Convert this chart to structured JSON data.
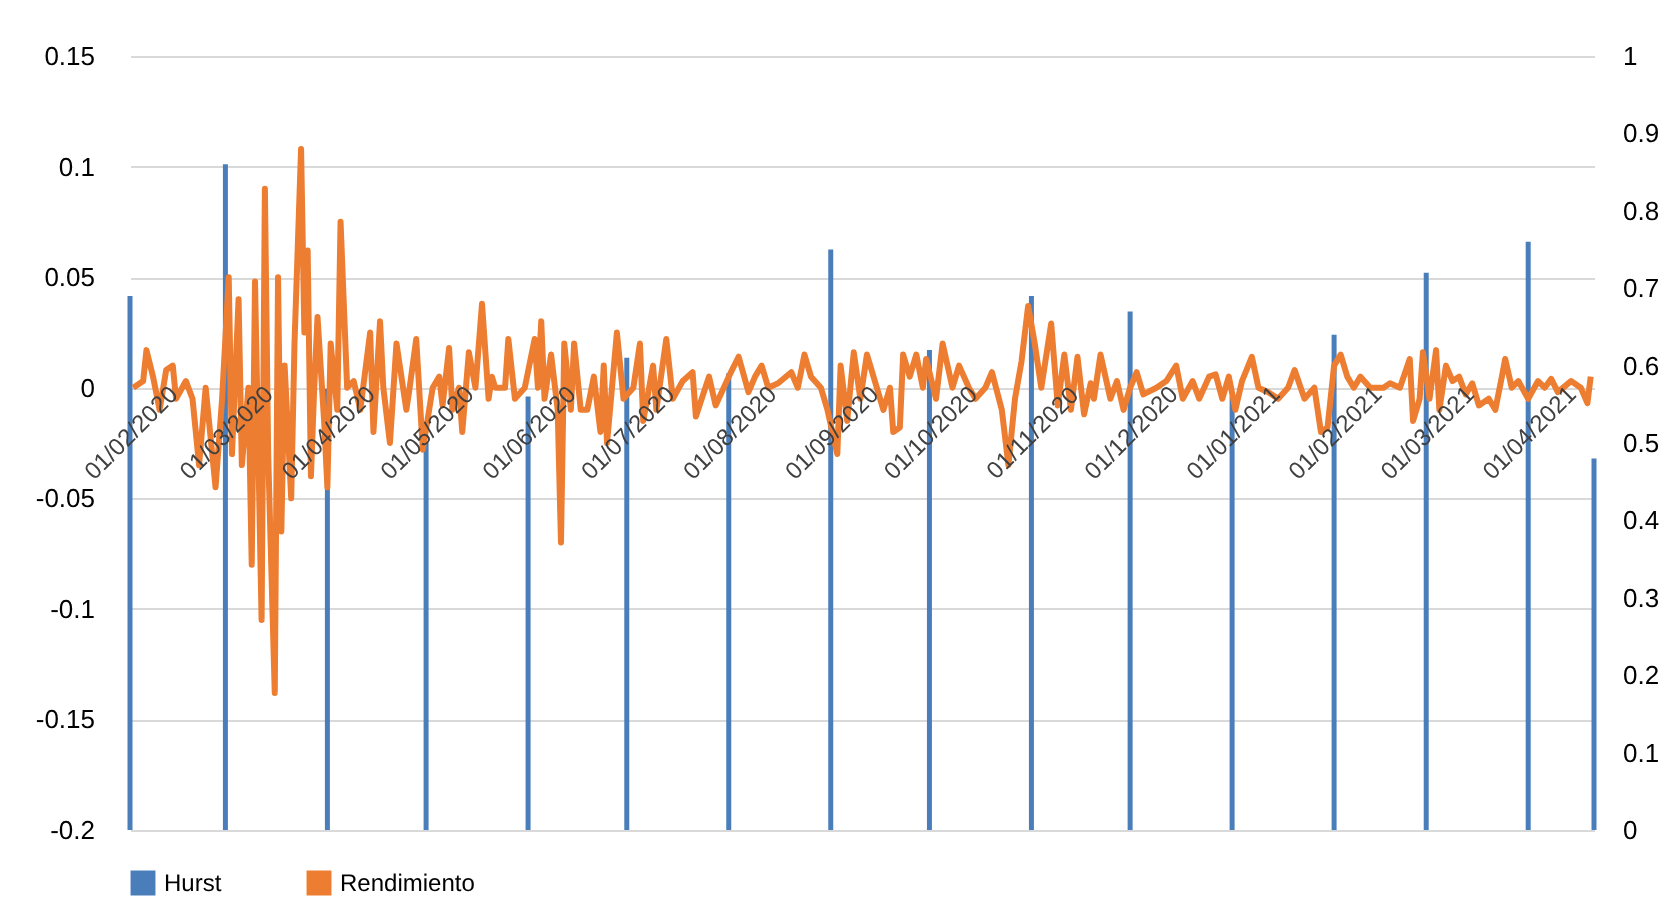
{
  "chart_data": {
    "type": "line",
    "legend": "bottom",
    "grid": "y",
    "xlim": [
      "2020-02-01",
      "2021-04-21"
    ],
    "xticks": [
      {
        "value": "2020-02-01",
        "label": "01/02/2020"
      },
      {
        "value": "2020-03-01",
        "label": "01/03/2020"
      },
      {
        "value": "2020-04-01",
        "label": "01/04/2020"
      },
      {
        "value": "2020-05-01",
        "label": "01/05/2020"
      },
      {
        "value": "2020-06-01",
        "label": "01/06/2020"
      },
      {
        "value": "2020-07-01",
        "label": "01/07/2020"
      },
      {
        "value": "2020-08-01",
        "label": "01/08/2020"
      },
      {
        "value": "2020-09-01",
        "label": "01/09/2020"
      },
      {
        "value": "2020-10-01",
        "label": "01/10/2020"
      },
      {
        "value": "2020-11-01",
        "label": "01/11/2020"
      },
      {
        "value": "2020-12-01",
        "label": "01/12/2020"
      },
      {
        "value": "2021-01-01",
        "label": "01/01/2021"
      },
      {
        "value": "2021-02-01",
        "label": "01/02/2021"
      },
      {
        "value": "2021-03-01",
        "label": "01/03/2021"
      },
      {
        "value": "2021-04-01",
        "label": "01/04/2021"
      }
    ],
    "ylim": [
      -0.2,
      0.15
    ],
    "yticks": [
      -0.2,
      -0.15,
      -0.1,
      -0.05,
      0,
      0.05,
      0.1,
      0.15
    ],
    "y2lim": [
      0,
      1
    ],
    "y2ticks": [
      0,
      0.1,
      0.2,
      0.3,
      0.4,
      0.5,
      0.6,
      0.7,
      0.8,
      0.9,
      1
    ],
    "series": [
      {
        "name": "Hurst",
        "type": "bar",
        "axis": "y2",
        "color": "#4a7ebb",
        "x": [
          "2020-02-01",
          "2020-03-01",
          "2020-04-01",
          "2020-05-01",
          "2020-06-01",
          "2020-07-01",
          "2020-08-01",
          "2020-09-01",
          "2020-10-01",
          "2020-11-01",
          "2020-12-01",
          "2021-01-01",
          "2021-02-01",
          "2021-03-01",
          "2021-04-01",
          "2021-04-21"
        ],
        "values": [
          0.69,
          0.86,
          0.57,
          0.5,
          0.56,
          0.61,
          0.59,
          0.75,
          0.62,
          0.69,
          0.67,
          0.56,
          0.64,
          0.72,
          0.76,
          0.48
        ]
      },
      {
        "name": "Rendimiento",
        "color": "#ed7d31",
        "x": [
          "2020-02-02",
          "2020-02-05",
          "2020-02-06",
          "2020-02-08",
          "2020-02-10",
          "2020-02-12",
          "2020-02-14",
          "2020-02-15",
          "2020-02-18",
          "2020-02-20",
          "2020-02-22",
          "2020-02-24",
          "2020-02-26",
          "2020-02-27",
          "2020-02-29",
          "2020-03-02",
          "2020-03-03",
          "2020-03-05",
          "2020-03-06",
          "2020-03-08",
          "2020-03-09",
          "2020-03-10",
          "2020-03-12",
          "2020-03-13",
          "2020-03-14",
          "2020-03-16",
          "2020-03-17",
          "2020-03-18",
          "2020-03-19",
          "2020-03-21",
          "2020-03-22",
          "2020-03-24",
          "2020-03-25",
          "2020-03-26",
          "2020-03-27",
          "2020-03-28",
          "2020-03-29",
          "2020-03-31",
          "2020-04-01",
          "2020-04-02",
          "2020-04-04",
          "2020-04-05",
          "2020-04-07",
          "2020-04-09",
          "2020-04-11",
          "2020-04-14",
          "2020-04-15",
          "2020-04-17",
          "2020-04-18",
          "2020-04-20",
          "2020-04-22",
          "2020-04-23",
          "2020-04-25",
          "2020-04-26",
          "2020-04-28",
          "2020-04-30",
          "2020-05-03",
          "2020-05-05",
          "2020-05-06",
          "2020-05-08",
          "2020-05-09",
          "2020-05-11",
          "2020-05-12",
          "2020-05-14",
          "2020-05-16",
          "2020-05-18",
          "2020-05-20",
          "2020-05-21",
          "2020-05-22",
          "2020-05-25",
          "2020-05-26",
          "2020-05-28",
          "2020-05-31",
          "2020-06-03",
          "2020-06-04",
          "2020-06-05",
          "2020-06-06",
          "2020-06-08",
          "2020-06-10",
          "2020-06-11",
          "2020-06-12",
          "2020-06-14",
          "2020-06-15",
          "2020-06-17",
          "2020-06-19",
          "2020-06-21",
          "2020-06-23",
          "2020-06-24",
          "2020-06-25",
          "2020-06-28",
          "2020-06-30",
          "2020-07-03",
          "2020-07-05",
          "2020-07-06",
          "2020-07-09",
          "2020-07-10",
          "2020-07-13",
          "2020-07-15",
          "2020-07-18",
          "2020-07-21",
          "2020-07-22",
          "2020-07-26",
          "2020-07-28",
          "2020-08-01",
          "2020-08-04",
          "2020-08-07",
          "2020-08-09",
          "2020-08-11",
          "2020-08-13",
          "2020-08-16",
          "2020-08-20",
          "2020-08-22",
          "2020-08-24",
          "2020-08-26",
          "2020-08-29",
          "2020-08-31",
          "2020-09-03",
          "2020-09-04",
          "2020-09-06",
          "2020-09-08",
          "2020-09-10",
          "2020-09-12",
          "2020-09-15",
          "2020-09-17",
          "2020-09-19",
          "2020-09-20",
          "2020-09-22",
          "2020-09-23",
          "2020-09-25",
          "2020-09-27",
          "2020-09-29",
          "2020-09-30",
          "2020-10-03",
          "2020-10-05",
          "2020-10-08",
          "2020-10-10",
          "2020-10-13",
          "2020-10-15",
          "2020-10-18",
          "2020-10-20",
          "2020-10-23",
          "2020-10-25",
          "2020-10-27",
          "2020-10-29",
          "2020-10-31",
          "2020-11-02",
          "2020-11-04",
          "2020-11-07",
          "2020-11-09",
          "2020-11-11",
          "2020-11-13",
          "2020-11-15",
          "2020-11-17",
          "2020-11-19",
          "2020-11-20",
          "2020-11-22",
          "2020-11-25",
          "2020-11-27",
          "2020-11-29",
          "2020-12-01",
          "2020-12-03",
          "2020-12-05",
          "2020-12-09",
          "2020-12-12",
          "2020-12-15",
          "2020-12-17",
          "2020-12-20",
          "2020-12-22",
          "2020-12-25",
          "2020-12-27",
          "2020-12-29",
          "2020-12-31",
          "2021-01-02",
          "2021-01-04",
          "2021-01-07",
          "2021-01-09",
          "2021-01-12",
          "2021-01-15",
          "2021-01-18",
          "2021-01-20",
          "2021-01-23",
          "2021-01-26",
          "2021-01-28",
          "2021-01-30",
          "2021-02-01",
          "2021-02-03",
          "2021-02-05",
          "2021-02-07",
          "2021-02-09",
          "2021-02-12",
          "2021-02-16",
          "2021-02-18",
          "2021-02-21",
          "2021-02-24",
          "2021-02-25",
          "2021-02-27",
          "2021-02-28",
          "2021-03-02",
          "2021-03-04",
          "2021-03-05",
          "2021-03-07",
          "2021-03-09",
          "2021-03-11",
          "2021-03-13",
          "2021-03-15",
          "2021-03-17",
          "2021-03-20",
          "2021-03-22",
          "2021-03-24",
          "2021-03-25",
          "2021-03-27",
          "2021-03-29",
          "2021-04-01",
          "2021-04-04",
          "2021-04-06",
          "2021-04-08",
          "2021-04-10",
          "2021-04-14",
          "2021-04-17",
          "2021-04-19",
          "2021-04-20"
        ],
        "values": [
          0,
          0.003,
          0.017,
          0.005,
          -0.01,
          0.008,
          0.01,
          -0.005,
          0.003,
          -0.005,
          -0.035,
          0,
          -0.03,
          -0.045,
          -0.005,
          0.05,
          -0.03,
          0.04,
          -0.035,
          0,
          -0.08,
          0.048,
          -0.105,
          0.09,
          -0.03,
          -0.138,
          0.05,
          -0.065,
          0.01,
          -0.05,
          0.02,
          0.108,
          0.025,
          0.062,
          -0.04,
          0,
          0.032,
          -0.015,
          -0.045,
          0.02,
          -0.01,
          0.075,
          0,
          0.003,
          -0.01,
          0.025,
          -0.02,
          0.03,
          0,
          -0.025,
          0.02,
          0.01,
          -0.01,
          0,
          0.022,
          -0.028,
          0,
          0.005,
          -0.008,
          0.018,
          -0.01,
          0,
          -0.02,
          0.016,
          0,
          0.038,
          -0.005,
          0.005,
          0,
          0,
          0.022,
          -0.005,
          0,
          0.022,
          0,
          0.03,
          -0.005,
          0.015,
          -0.01,
          -0.07,
          0.02,
          -0.01,
          0.02,
          -0.01,
          -0.01,
          0.005,
          -0.02,
          0.01,
          -0.025,
          0.025,
          -0.005,
          0,
          0.02,
          -0.015,
          0.01,
          -0.01,
          0.022,
          -0.005,
          0.003,
          0.007,
          -0.013,
          0.005,
          -0.008,
          0.005,
          0.014,
          -0.002,
          0.005,
          0.01,
          0,
          0.002,
          0.007,
          0,
          0.015,
          0.005,
          0,
          -0.01,
          -0.03,
          0.01,
          -0.015,
          0.016,
          -0.005,
          0.015,
          0,
          -0.01,
          0,
          -0.02,
          -0.018,
          0.015,
          0.005,
          0.015,
          0,
          0.013,
          -0.005,
          0.02,
          0,
          0.01,
          0,
          -0.005,
          0,
          0.007,
          -0.01,
          -0.035,
          -0.005,
          0.012,
          0.037,
          0.02,
          0,
          0.029,
          -0.008,
          0.015,
          -0.01,
          0.014,
          -0.012,
          0.002,
          -0.005,
          0.015,
          -0.005,
          0.003,
          -0.01,
          0,
          0.007,
          -0.003,
          0,
          0.003,
          0.01,
          -0.005,
          0.003,
          -0.005,
          0.005,
          0.006,
          -0.005,
          0.005,
          -0.01,
          0.003,
          0.014,
          0,
          -0.002,
          -0.005,
          0,
          0.008,
          -0.005,
          0,
          -0.02,
          -0.018,
          0.01,
          0.015,
          0.005,
          0,
          0.005,
          0,
          0,
          0.002,
          0,
          0.013,
          -0.015,
          -0.005,
          0.016,
          -0.005,
          0.017,
          -0.01,
          0.01,
          0.003,
          0.005,
          -0.003,
          0.002,
          -0.008,
          -0.005,
          -0.01,
          0.005,
          0.013,
          0,
          0.003,
          -0.005,
          0.003,
          0,
          0.004,
          -0.002,
          0.003,
          0,
          -0.007,
          0.005
        ]
      }
    ]
  }
}
